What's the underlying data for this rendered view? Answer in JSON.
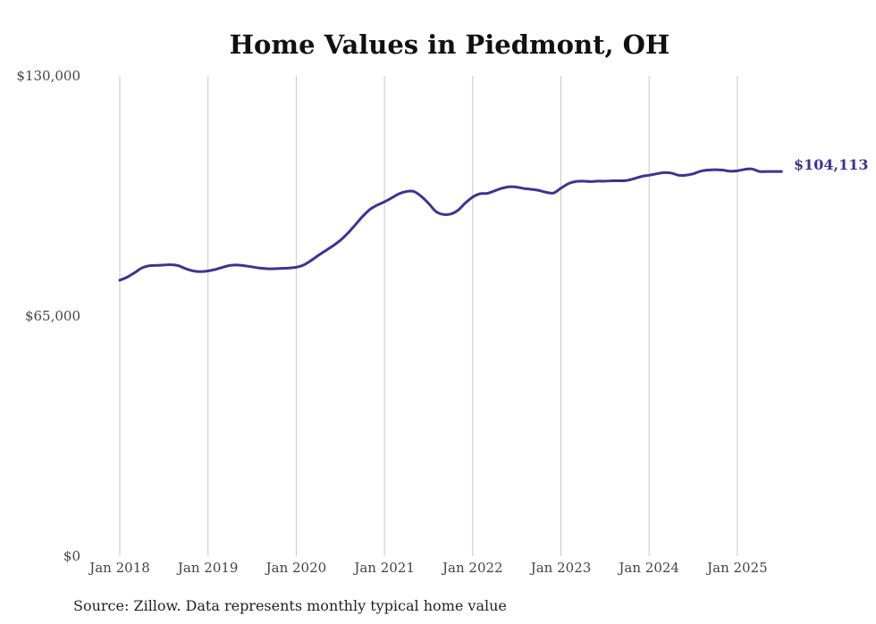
{
  "chart_data": {
    "type": "line",
    "title": "Home Values in Piedmont, OH",
    "source": "Source: Zillow. Data represents monthly typical home value",
    "ylim": [
      0,
      130000
    ],
    "y_ticks": [
      {
        "value": 0,
        "label": "$0"
      },
      {
        "value": 65000,
        "label": "$65,000"
      },
      {
        "value": 130000,
        "label": "$130,000"
      }
    ],
    "x_ticks": [
      "Jan 2018",
      "Jan 2019",
      "Jan 2020",
      "Jan 2021",
      "Jan 2022",
      "Jan 2023",
      "Jan 2024",
      "Jan 2025"
    ],
    "grid": "vertical",
    "color": "#3a3591",
    "end_label": "$104,113",
    "series": [
      {
        "x": [
          "2018-01",
          "2018-02",
          "2018-03",
          "2018-04",
          "2018-05",
          "2018-06",
          "2018-07",
          "2018-08",
          "2018-09",
          "2018-10",
          "2018-11",
          "2018-12",
          "2019-01",
          "2019-02",
          "2019-03",
          "2019-04",
          "2019-05",
          "2019-06",
          "2019-07",
          "2019-08",
          "2019-09",
          "2019-10",
          "2019-11",
          "2019-12",
          "2020-01",
          "2020-02",
          "2020-03",
          "2020-04",
          "2020-05",
          "2020-06",
          "2020-07",
          "2020-08",
          "2020-09",
          "2020-10",
          "2020-11",
          "2020-12",
          "2021-01",
          "2021-02",
          "2021-03",
          "2021-04",
          "2021-05",
          "2021-06",
          "2021-07",
          "2021-08",
          "2021-09",
          "2021-10",
          "2021-11",
          "2021-12",
          "2022-01",
          "2022-02",
          "2022-03",
          "2022-04",
          "2022-05",
          "2022-06",
          "2022-07",
          "2022-08",
          "2022-09",
          "2022-10",
          "2022-11",
          "2022-12",
          "2023-01",
          "2023-02",
          "2023-03",
          "2023-04",
          "2023-05",
          "2023-06",
          "2023-07",
          "2023-08",
          "2023-09",
          "2023-10",
          "2023-11",
          "2023-12",
          "2024-01",
          "2024-02",
          "2024-03",
          "2024-04",
          "2024-05",
          "2024-06",
          "2024-07",
          "2024-08",
          "2024-09",
          "2024-10",
          "2024-11",
          "2024-12",
          "2025-01",
          "2025-02",
          "2025-03",
          "2025-04",
          "2025-05",
          "2025-06",
          "2025-07"
        ],
        "values": [
          74700,
          75500,
          76700,
          78000,
          78600,
          78700,
          78800,
          78900,
          78600,
          77800,
          77200,
          77000,
          77200,
          77600,
          78200,
          78700,
          78800,
          78600,
          78300,
          78000,
          77800,
          77800,
          77900,
          78000,
          78200,
          78800,
          80000,
          81400,
          82700,
          84000,
          85500,
          87400,
          89600,
          91900,
          93800,
          95000,
          95900,
          97000,
          98100,
          98700,
          98700,
          97400,
          95500,
          93300,
          92500,
          92600,
          93600,
          95600,
          97200,
          98100,
          98200,
          98900,
          99600,
          100000,
          99900,
          99500,
          99300,
          99000,
          98500,
          98300,
          99600,
          100800,
          101400,
          101500,
          101400,
          101500,
          101500,
          101600,
          101600,
          101700,
          102200,
          102800,
          103100,
          103500,
          103800,
          103700,
          103100,
          103100,
          103500,
          104200,
          104500,
          104600,
          104500,
          104200,
          104300,
          104700,
          104800,
          104113,
          104113,
          104113,
          104113
        ]
      }
    ]
  }
}
